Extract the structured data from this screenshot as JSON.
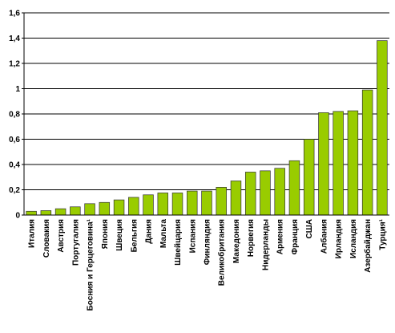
{
  "chart_data": {
    "type": "bar",
    "categories": [
      "Италия",
      "Словакия",
      "Австрия",
      "Португалия",
      "Босния и Герцеговина¹",
      "Япония",
      "Швеция",
      "Бельгия",
      "Дания",
      "Мальта",
      "Швейцария",
      "Испания",
      "Финляндия",
      "Великобритания",
      "Македония",
      "Норвегия",
      "Нидерланды",
      "Армения",
      "Франция",
      "США",
      "Албания",
      "Ирландия",
      "Исландия",
      "Азербайджан",
      "Турция¹"
    ],
    "values": [
      0.03,
      0.035,
      0.05,
      0.065,
      0.09,
      0.1,
      0.12,
      0.14,
      0.16,
      0.175,
      0.175,
      0.19,
      0.19,
      0.22,
      0.27,
      0.34,
      0.35,
      0.37,
      0.43,
      0.6,
      0.81,
      0.82,
      0.825,
      0.99,
      1.38
    ],
    "color": "#99cc00",
    "ylim": [
      0,
      1.6
    ],
    "yticks": [
      0,
      {
        "value": 0.2,
        "label": "0,2"
      },
      {
        "value": 0.4,
        "label": "0,4"
      },
      {
        "value": 0.6,
        "label": "0,6"
      },
      {
        "value": 0.8,
        "label": "0,8"
      },
      1,
      {
        "value": 1.2,
        "label": "1,2"
      },
      {
        "value": 1.4,
        "label": "1,4"
      },
      {
        "value": 1.6,
        "label": "1,6"
      }
    ],
    "grid": true
  }
}
